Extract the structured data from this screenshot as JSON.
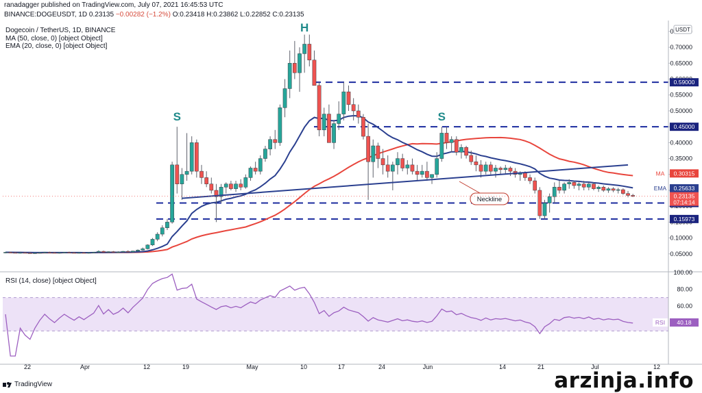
{
  "header": {
    "publisher_line": "ranadagger published on TradingView.com, July 07, 2021 16:45:53 UTC",
    "ticker_line_prefix": "BINANCE:DOGEUSDT, 1D 0.23135",
    "change": "−0.00282 (−1.2%)",
    "ohlc": "O:0.23418 H:0.23862 L:0.22852 C:0.23135"
  },
  "footer": {
    "logo_text": "TradingView",
    "watermark": "arzinja.info"
  },
  "chart_data": [
    {
      "type": "candlestick",
      "title": "Dogecoin / TetherUS, 1D, BINANCE",
      "indicator_labels": [
        "MA (50, close, 0) [object Object]",
        "EMA (20, close, 0) [object Object]"
      ],
      "currency_label": "USDT",
      "y_ticks": [
        "0.75000",
        "0.70000",
        "0.65000",
        "0.60000",
        "0.55000",
        "0.50000",
        "0.45000",
        "0.40000",
        "0.35000",
        "0.30000",
        "0.25000",
        "0.20000",
        "0.15000",
        "0.10000",
        "0.05000"
      ],
      "ylim": [
        0.0,
        0.78
      ],
      "x_ticks": [
        "22",
        "Apr",
        "12",
        "19",
        "May",
        "10",
        "17",
        "24",
        "Jun",
        "14",
        "21",
        "Jul",
        "12"
      ],
      "series_colors": {
        "up": "#26a69a",
        "down": "#ef5350",
        "ma": "#e8453c",
        "ema": "#2a3f8f"
      },
      "candles": [
        [
          0.054,
          0.056,
          0.052,
          0.055
        ],
        [
          0.055,
          0.057,
          0.053,
          0.054
        ],
        [
          0.054,
          0.056,
          0.052,
          0.053
        ],
        [
          0.053,
          0.055,
          0.051,
          0.054
        ],
        [
          0.054,
          0.056,
          0.052,
          0.053
        ],
        [
          0.053,
          0.055,
          0.051,
          0.052
        ],
        [
          0.052,
          0.054,
          0.05,
          0.053
        ],
        [
          0.053,
          0.055,
          0.051,
          0.054
        ],
        [
          0.054,
          0.056,
          0.052,
          0.055
        ],
        [
          0.055,
          0.057,
          0.053,
          0.054
        ],
        [
          0.054,
          0.056,
          0.052,
          0.053
        ],
        [
          0.053,
          0.055,
          0.051,
          0.054
        ],
        [
          0.054,
          0.056,
          0.052,
          0.055
        ],
        [
          0.055,
          0.057,
          0.053,
          0.054
        ],
        [
          0.054,
          0.056,
          0.052,
          0.053
        ],
        [
          0.053,
          0.055,
          0.051,
          0.054
        ],
        [
          0.054,
          0.056,
          0.052,
          0.053
        ],
        [
          0.053,
          0.055,
          0.051,
          0.054
        ],
        [
          0.054,
          0.056,
          0.052,
          0.055
        ],
        [
          0.055,
          0.061,
          0.053,
          0.058
        ],
        [
          0.058,
          0.06,
          0.054,
          0.055
        ],
        [
          0.055,
          0.058,
          0.053,
          0.057
        ],
        [
          0.057,
          0.059,
          0.054,
          0.055
        ],
        [
          0.055,
          0.058,
          0.053,
          0.056
        ],
        [
          0.056,
          0.059,
          0.054,
          0.058
        ],
        [
          0.058,
          0.061,
          0.055,
          0.056
        ],
        [
          0.056,
          0.06,
          0.054,
          0.059
        ],
        [
          0.059,
          0.064,
          0.057,
          0.062
        ],
        [
          0.062,
          0.07,
          0.06,
          0.066
        ],
        [
          0.066,
          0.08,
          0.064,
          0.078
        ],
        [
          0.078,
          0.1,
          0.075,
          0.096
        ],
        [
          0.096,
          0.118,
          0.09,
          0.112
        ],
        [
          0.112,
          0.14,
          0.105,
          0.132
        ],
        [
          0.132,
          0.16,
          0.125,
          0.15
        ],
        [
          0.15,
          0.34,
          0.145,
          0.33
        ],
        [
          0.33,
          0.45,
          0.24,
          0.27
        ],
        [
          0.27,
          0.32,
          0.22,
          0.3
        ],
        [
          0.3,
          0.43,
          0.28,
          0.31
        ],
        [
          0.31,
          0.42,
          0.3,
          0.4
        ],
        [
          0.4,
          0.41,
          0.29,
          0.31
        ],
        [
          0.31,
          0.33,
          0.27,
          0.29
        ],
        [
          0.29,
          0.31,
          0.26,
          0.27
        ],
        [
          0.27,
          0.29,
          0.24,
          0.25
        ],
        [
          0.25,
          0.27,
          0.15,
          0.23
        ],
        [
          0.23,
          0.27,
          0.21,
          0.26
        ],
        [
          0.26,
          0.275,
          0.24,
          0.27
        ],
        [
          0.27,
          0.28,
          0.25,
          0.255
        ],
        [
          0.255,
          0.28,
          0.245,
          0.27
        ],
        [
          0.27,
          0.285,
          0.25,
          0.26
        ],
        [
          0.26,
          0.3,
          0.255,
          0.29
        ],
        [
          0.29,
          0.325,
          0.28,
          0.32
        ],
        [
          0.32,
          0.34,
          0.3,
          0.31
        ],
        [
          0.31,
          0.36,
          0.3,
          0.35
        ],
        [
          0.35,
          0.39,
          0.34,
          0.38
        ],
        [
          0.38,
          0.42,
          0.36,
          0.41
        ],
        [
          0.41,
          0.44,
          0.38,
          0.4
        ],
        [
          0.4,
          0.52,
          0.39,
          0.51
        ],
        [
          0.51,
          0.6,
          0.48,
          0.57
        ],
        [
          0.57,
          0.69,
          0.54,
          0.65
        ],
        [
          0.65,
          0.72,
          0.6,
          0.62
        ],
        [
          0.62,
          0.7,
          0.56,
          0.68
        ],
        [
          0.68,
          0.74,
          0.62,
          0.71
        ],
        [
          0.71,
          0.74,
          0.64,
          0.66
        ],
        [
          0.66,
          0.69,
          0.58,
          0.58
        ],
        [
          0.58,
          0.59,
          0.42,
          0.44
        ],
        [
          0.44,
          0.51,
          0.42,
          0.49
        ],
        [
          0.49,
          0.52,
          0.4,
          0.4
        ],
        [
          0.4,
          0.47,
          0.38,
          0.46
        ],
        [
          0.46,
          0.53,
          0.44,
          0.49
        ],
        [
          0.49,
          0.59,
          0.47,
          0.56
        ],
        [
          0.56,
          0.58,
          0.5,
          0.52
        ],
        [
          0.52,
          0.54,
          0.47,
          0.5
        ],
        [
          0.5,
          0.52,
          0.46,
          0.48
        ],
        [
          0.48,
          0.49,
          0.41,
          0.42
        ],
        [
          0.42,
          0.46,
          0.22,
          0.34
        ],
        [
          0.34,
          0.41,
          0.29,
          0.39
        ],
        [
          0.39,
          0.4,
          0.32,
          0.35
        ],
        [
          0.35,
          0.38,
          0.3,
          0.33
        ],
        [
          0.33,
          0.36,
          0.29,
          0.31
        ],
        [
          0.31,
          0.34,
          0.25,
          0.33
        ],
        [
          0.33,
          0.37,
          0.3,
          0.35
        ],
        [
          0.35,
          0.365,
          0.31,
          0.32
        ],
        [
          0.32,
          0.345,
          0.3,
          0.33
        ],
        [
          0.33,
          0.35,
          0.3,
          0.31
        ],
        [
          0.31,
          0.33,
          0.28,
          0.3
        ],
        [
          0.3,
          0.33,
          0.29,
          0.31
        ],
        [
          0.31,
          0.34,
          0.28,
          0.29
        ],
        [
          0.29,
          0.3,
          0.27,
          0.3
        ],
        [
          0.3,
          0.37,
          0.29,
          0.35
        ],
        [
          0.35,
          0.45,
          0.34,
          0.43
        ],
        [
          0.43,
          0.45,
          0.38,
          0.4
        ],
        [
          0.4,
          0.42,
          0.37,
          0.41
        ],
        [
          0.41,
          0.42,
          0.36,
          0.37
        ],
        [
          0.37,
          0.395,
          0.35,
          0.385
        ],
        [
          0.385,
          0.39,
          0.35,
          0.36
        ],
        [
          0.36,
          0.375,
          0.33,
          0.34
        ],
        [
          0.34,
          0.36,
          0.31,
          0.33
        ],
        [
          0.33,
          0.345,
          0.29,
          0.31
        ],
        [
          0.31,
          0.34,
          0.3,
          0.33
        ],
        [
          0.33,
          0.34,
          0.3,
          0.31
        ],
        [
          0.31,
          0.33,
          0.29,
          0.32
        ],
        [
          0.32,
          0.325,
          0.3,
          0.315
        ],
        [
          0.315,
          0.33,
          0.3,
          0.32
        ],
        [
          0.32,
          0.325,
          0.295,
          0.31
        ],
        [
          0.31,
          0.32,
          0.29,
          0.3
        ],
        [
          0.3,
          0.31,
          0.28,
          0.305
        ],
        [
          0.305,
          0.31,
          0.28,
          0.29
        ],
        [
          0.29,
          0.3,
          0.27,
          0.28
        ],
        [
          0.28,
          0.29,
          0.24,
          0.25
        ],
        [
          0.25,
          0.26,
          0.16,
          0.17
        ],
        [
          0.17,
          0.22,
          0.16,
          0.21
        ],
        [
          0.21,
          0.24,
          0.18,
          0.23
        ],
        [
          0.23,
          0.275,
          0.21,
          0.26
        ],
        [
          0.26,
          0.28,
          0.24,
          0.25
        ],
        [
          0.25,
          0.275,
          0.24,
          0.27
        ],
        [
          0.27,
          0.285,
          0.255,
          0.275
        ],
        [
          0.275,
          0.28,
          0.255,
          0.265
        ],
        [
          0.265,
          0.275,
          0.25,
          0.27
        ],
        [
          0.27,
          0.28,
          0.25,
          0.26
        ],
        [
          0.26,
          0.275,
          0.25,
          0.27
        ],
        [
          0.27,
          0.275,
          0.25,
          0.255
        ],
        [
          0.255,
          0.265,
          0.245,
          0.26
        ],
        [
          0.26,
          0.265,
          0.245,
          0.25
        ],
        [
          0.25,
          0.26,
          0.242,
          0.255
        ],
        [
          0.255,
          0.26,
          0.244,
          0.25
        ],
        [
          0.25,
          0.258,
          0.24,
          0.252
        ],
        [
          0.252,
          0.256,
          0.236,
          0.24
        ],
        [
          0.24,
          0.248,
          0.228,
          0.234
        ],
        [
          0.234,
          0.239,
          0.229,
          0.231
        ]
      ],
      "horizontal_levels": [
        {
          "value": 0.59,
          "label": "0.59000"
        },
        {
          "value": 0.45,
          "label": "0.45000"
        },
        {
          "value": 0.21,
          "label": "0.21000"
        },
        {
          "value": 0.15973,
          "label": "0.15973"
        }
      ],
      "neckline": {
        "label": "Neckline",
        "from": [
          36,
          0.225
        ],
        "to": [
          127,
          0.33
        ]
      },
      "pattern_labels": [
        {
          "text": "S",
          "candle": 35,
          "value": 0.47
        },
        {
          "text": "H",
          "candle": 61,
          "value": 0.75
        },
        {
          "text": "S",
          "candle": 89,
          "value": 0.47
        }
      ],
      "price_tags": [
        {
          "name": "MA",
          "value": "0.30315",
          "y": 0.30315,
          "color": "#e8453c"
        },
        {
          "name": "EMA",
          "value": "0.25633",
          "y": 0.25633,
          "color": "#2a3f8f"
        },
        {
          "name": "",
          "value": "0.23135",
          "extra": "07:14:14",
          "y": 0.23135,
          "color": "#ef5350"
        }
      ]
    },
    {
      "type": "line",
      "title": "RSI (14, close) [object Object]",
      "ylim": [
        0,
        100
      ],
      "y_ticks": [
        "100.00",
        "80.00",
        "60.00",
        "40.00"
      ],
      "band": [
        30,
        70
      ],
      "last_tag": {
        "name": "RSI",
        "value": "40.18"
      },
      "color": "#9c5fc0"
    }
  ]
}
